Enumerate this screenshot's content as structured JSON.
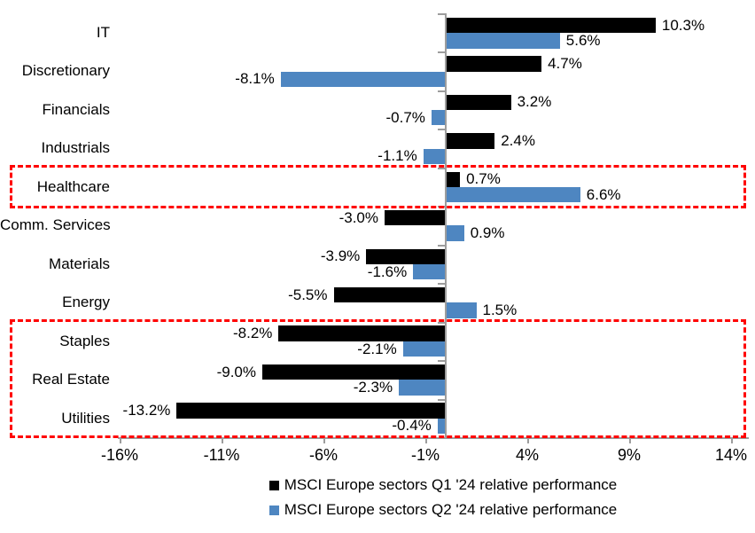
{
  "chart_data": {
    "type": "bar",
    "orientation": "horizontal",
    "title": "",
    "categories": [
      "IT",
      "Discretionary",
      "Financials",
      "Industrials",
      "Healthcare",
      "Comm. Services",
      "Materials",
      "Energy",
      "Staples",
      "Real Estate",
      "Utilities"
    ],
    "series": [
      {
        "name": "MSCI Europe sectors Q1 '24 relative performance",
        "color": "#000000",
        "values": [
          10.3,
          4.7,
          3.2,
          2.4,
          0.7,
          -3.0,
          -3.9,
          -5.5,
          -8.2,
          -9.0,
          -13.2
        ]
      },
      {
        "name": "MSCI Europe sectors Q2 '24 relative performance",
        "color": "#4E86C1",
        "values": [
          5.6,
          -8.1,
          -0.7,
          -1.1,
          6.6,
          0.9,
          -1.6,
          1.5,
          -2.1,
          -2.3,
          -0.4
        ]
      }
    ],
    "value_label_format": "0.0%",
    "x_ticks": [
      {
        "label": "-16%",
        "value": -16
      },
      {
        "label": "-11%",
        "value": -11
      },
      {
        "label": "-6%",
        "value": -6
      },
      {
        "label": "-1%",
        "value": -1
      },
      {
        "label": "4%",
        "value": 4
      },
      {
        "label": "9%",
        "value": 9
      },
      {
        "label": "14%",
        "value": 14
      }
    ],
    "xlim": [
      -16.1,
      14.9
    ],
    "grid": false,
    "legend_position": "bottom",
    "axis_color": "#9d9d9d",
    "highlight_color": "#FF0000",
    "highlight_boxes": [
      {
        "categories": [
          "Healthcare"
        ]
      },
      {
        "categories": [
          "Staples",
          "Real Estate",
          "Utilities"
        ]
      }
    ]
  }
}
